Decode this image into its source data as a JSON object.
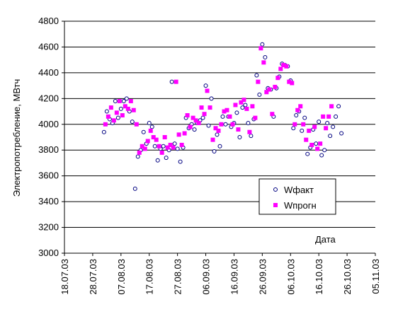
{
  "chart_data": {
    "type": "scatter",
    "ylabel": "Электропотребление, МВтч",
    "xlabel": "Дата",
    "ylim": [
      3000,
      4800
    ],
    "y_ticks": [
      3000,
      3200,
      3400,
      3600,
      3800,
      4000,
      4200,
      4400,
      4600,
      4800
    ],
    "x_range": [
      "2003-07-18",
      "2003-11-05"
    ],
    "x_ticks": [
      "18.07.03",
      "28.07.03",
      "07.08.03",
      "17.08.03",
      "27.08.03",
      "06.09.03",
      "16.09.03",
      "26.09.03",
      "06.10.03",
      "16.10.03",
      "26.10.03",
      "05.11.03"
    ],
    "grid": "horizontal",
    "legend_position": "inside-bottom-right",
    "series": [
      {
        "name": "Wфакт",
        "marker": "open-circle",
        "color": "#000080",
        "points": [
          [
            "2003-08-01",
            3940
          ],
          [
            "2003-08-02",
            4100
          ],
          [
            "2003-08-03",
            4040
          ],
          [
            "2003-08-04",
            4010
          ],
          [
            "2003-08-05",
            4180
          ],
          [
            "2003-08-06",
            4050
          ],
          [
            "2003-08-07",
            4120
          ],
          [
            "2003-08-08",
            4180
          ],
          [
            "2003-08-09",
            4200
          ],
          [
            "2003-08-10",
            4100
          ],
          [
            "2003-08-11",
            4020
          ],
          [
            "2003-08-12",
            3500
          ],
          [
            "2003-08-13",
            3750
          ],
          [
            "2003-08-14",
            3800
          ],
          [
            "2003-08-15",
            3940
          ],
          [
            "2003-08-16",
            3850
          ],
          [
            "2003-08-17",
            4010
          ],
          [
            "2003-08-18",
            3980
          ],
          [
            "2003-08-19",
            3830
          ],
          [
            "2003-08-20",
            3720
          ],
          [
            "2003-08-21",
            3810
          ],
          [
            "2003-08-22",
            3830
          ],
          [
            "2003-08-23",
            3740
          ],
          [
            "2003-08-24",
            3800
          ],
          [
            "2003-08-25",
            4330
          ],
          [
            "2003-08-26",
            3850
          ],
          [
            "2003-08-27",
            3810
          ],
          [
            "2003-08-28",
            3710
          ],
          [
            "2003-08-29",
            3820
          ],
          [
            "2003-08-30",
            4050
          ],
          [
            "2003-08-31",
            3970
          ],
          [
            "2003-09-01",
            4000
          ],
          [
            "2003-09-02",
            3960
          ],
          [
            "2003-09-03",
            4010
          ],
          [
            "2003-09-04",
            4030
          ],
          [
            "2003-09-05",
            4050
          ],
          [
            "2003-09-06",
            4300
          ],
          [
            "2003-09-07",
            3990
          ],
          [
            "2003-09-08",
            4200
          ],
          [
            "2003-09-09",
            3790
          ],
          [
            "2003-09-10",
            3920
          ],
          [
            "2003-09-11",
            3830
          ],
          [
            "2003-09-12",
            4060
          ],
          [
            "2003-09-13",
            4000
          ],
          [
            "2003-09-14",
            4060
          ],
          [
            "2003-09-15",
            3980
          ],
          [
            "2003-09-16",
            4010
          ],
          [
            "2003-09-17",
            4090
          ],
          [
            "2003-09-18",
            3900
          ],
          [
            "2003-09-19",
            4130
          ],
          [
            "2003-09-20",
            4150
          ],
          [
            "2003-09-21",
            4010
          ],
          [
            "2003-09-22",
            3910
          ],
          [
            "2003-09-23",
            4040
          ],
          [
            "2003-09-24",
            4380
          ],
          [
            "2003-09-25",
            4230
          ],
          [
            "2003-09-26",
            4620
          ],
          [
            "2003-09-27",
            4520
          ],
          [
            "2003-09-28",
            4280
          ],
          [
            "2003-09-29",
            4270
          ],
          [
            "2003-09-30",
            4060
          ],
          [
            "2003-10-01",
            4280
          ],
          [
            "2003-10-02",
            4370
          ],
          [
            "2003-10-03",
            4470
          ],
          [
            "2003-10-04",
            4460
          ],
          [
            "2003-10-05",
            4450
          ],
          [
            "2003-10-06",
            4340
          ],
          [
            "2003-10-07",
            3970
          ],
          [
            "2003-10-08",
            4070
          ],
          [
            "2003-10-09",
            4100
          ],
          [
            "2003-10-10",
            3950
          ],
          [
            "2003-10-11",
            4050
          ],
          [
            "2003-10-12",
            3770
          ],
          [
            "2003-10-13",
            3820
          ],
          [
            "2003-10-14",
            3960
          ],
          [
            "2003-10-15",
            3850
          ],
          [
            "2003-10-16",
            4020
          ],
          [
            "2003-10-17",
            3760
          ],
          [
            "2003-10-18",
            3800
          ],
          [
            "2003-10-19",
            4010
          ],
          [
            "2003-10-20",
            3910
          ],
          [
            "2003-10-21",
            3980
          ],
          [
            "2003-10-22",
            4060
          ],
          [
            "2003-10-23",
            4140
          ],
          [
            "2003-10-24",
            3930
          ]
        ]
      },
      {
        "name": "Wпрогн",
        "marker": "filled-square",
        "color": "#ff00ff",
        "points": [
          [
            "2003-08-01",
            4000
          ],
          [
            "2003-08-02",
            4060
          ],
          [
            "2003-08-03",
            4130
          ],
          [
            "2003-08-04",
            4030
          ],
          [
            "2003-08-05",
            4090
          ],
          [
            "2003-08-06",
            4180
          ],
          [
            "2003-08-07",
            4070
          ],
          [
            "2003-08-08",
            4140
          ],
          [
            "2003-08-09",
            4120
          ],
          [
            "2003-08-10",
            4180
          ],
          [
            "2003-08-11",
            4110
          ],
          [
            "2003-08-12",
            4000
          ],
          [
            "2003-08-13",
            3780
          ],
          [
            "2003-08-14",
            3830
          ],
          [
            "2003-08-15",
            3810
          ],
          [
            "2003-08-16",
            3870
          ],
          [
            "2003-08-17",
            3950
          ],
          [
            "2003-08-18",
            3900
          ],
          [
            "2003-08-19",
            3880
          ],
          [
            "2003-08-20",
            3830
          ],
          [
            "2003-08-21",
            3780
          ],
          [
            "2003-08-22",
            3900
          ],
          [
            "2003-08-23",
            3820
          ],
          [
            "2003-08-24",
            3840
          ],
          [
            "2003-08-25",
            3820
          ],
          [
            "2003-08-26",
            4330
          ],
          [
            "2003-08-27",
            3920
          ],
          [
            "2003-08-28",
            3840
          ],
          [
            "2003-08-29",
            3930
          ],
          [
            "2003-08-30",
            4070
          ],
          [
            "2003-08-31",
            3980
          ],
          [
            "2003-09-01",
            4050
          ],
          [
            "2003-09-02",
            4030
          ],
          [
            "2003-09-03",
            4010
          ],
          [
            "2003-09-04",
            4130
          ],
          [
            "2003-09-05",
            4080
          ],
          [
            "2003-09-06",
            4260
          ],
          [
            "2003-09-07",
            4130
          ],
          [
            "2003-09-08",
            3880
          ],
          [
            "2003-09-09",
            3970
          ],
          [
            "2003-09-10",
            3950
          ],
          [
            "2003-09-11",
            4000
          ],
          [
            "2003-09-12",
            4100
          ],
          [
            "2003-09-13",
            4110
          ],
          [
            "2003-09-14",
            4060
          ],
          [
            "2003-09-15",
            4000
          ],
          [
            "2003-09-16",
            4150
          ],
          [
            "2003-09-17",
            3960
          ],
          [
            "2003-09-18",
            4170
          ],
          [
            "2003-09-19",
            4190
          ],
          [
            "2003-09-20",
            4120
          ],
          [
            "2003-09-21",
            3940
          ],
          [
            "2003-09-22",
            4140
          ],
          [
            "2003-09-23",
            4050
          ],
          [
            "2003-09-24",
            4330
          ],
          [
            "2003-09-25",
            4590
          ],
          [
            "2003-09-26",
            4480
          ],
          [
            "2003-09-27",
            4250
          ],
          [
            "2003-09-28",
            4270
          ],
          [
            "2003-09-29",
            4080
          ],
          [
            "2003-09-30",
            4290
          ],
          [
            "2003-10-01",
            4360
          ],
          [
            "2003-10-02",
            4430
          ],
          [
            "2003-10-03",
            4460
          ],
          [
            "2003-10-04",
            4450
          ],
          [
            "2003-10-05",
            4330
          ],
          [
            "2003-10-06",
            4320
          ],
          [
            "2003-10-07",
            4000
          ],
          [
            "2003-10-08",
            4110
          ],
          [
            "2003-10-09",
            4140
          ],
          [
            "2003-10-10",
            4000
          ],
          [
            "2003-10-11",
            3880
          ],
          [
            "2003-10-12",
            3950
          ],
          [
            "2003-10-13",
            3840
          ],
          [
            "2003-10-14",
            3980
          ],
          [
            "2003-10-15",
            3810
          ],
          [
            "2003-10-16",
            3850
          ],
          [
            "2003-10-17",
            4060
          ],
          [
            "2003-10-18",
            3970
          ],
          [
            "2003-10-19",
            4060
          ],
          [
            "2003-10-20",
            4140
          ]
        ]
      }
    ]
  }
}
